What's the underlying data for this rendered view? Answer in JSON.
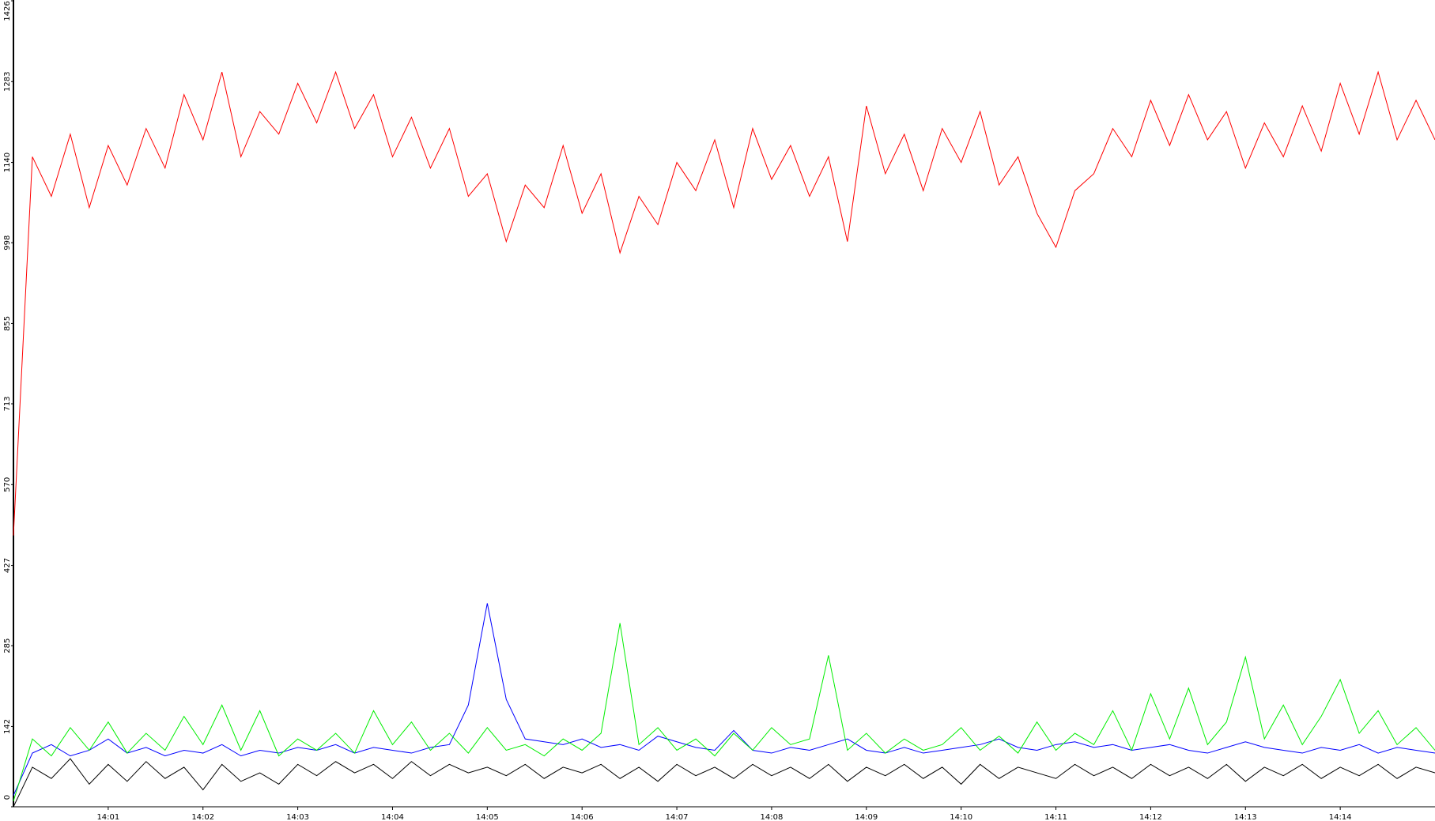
{
  "chart_data": {
    "type": "line",
    "x": [
      0,
      0.2,
      0.4,
      0.6,
      0.8,
      1,
      1.2,
      1.4,
      1.6,
      1.8,
      2,
      2.2,
      2.4,
      2.6,
      2.8,
      3,
      3.2,
      3.4,
      3.6,
      3.8,
      4,
      4.2,
      4.4,
      4.6,
      4.8,
      5,
      5.2,
      5.4,
      5.6,
      5.8,
      6,
      6.2,
      6.4,
      6.6,
      6.8,
      7,
      7.2,
      7.4,
      7.6,
      7.8,
      8,
      8.2,
      8.4,
      8.6,
      8.8,
      9,
      9.2,
      9.4,
      9.6,
      9.8,
      10,
      10.2,
      10.4,
      10.6,
      10.8,
      11,
      11.2,
      11.4,
      11.6,
      11.8,
      12,
      12.2,
      12.4,
      12.6,
      12.8,
      13,
      13.2,
      13.4,
      13.6,
      13.8,
      14,
      14.2,
      14.4,
      14.6,
      14.8,
      15
    ],
    "series": [
      {
        "color": "#ff0000",
        "values": [
          480,
          1150,
          1080,
          1190,
          1060,
          1170,
          1100,
          1200,
          1130,
          1260,
          1180,
          1300,
          1150,
          1230,
          1190,
          1280,
          1210,
          1300,
          1200,
          1260,
          1150,
          1220,
          1130,
          1200,
          1080,
          1120,
          1000,
          1100,
          1060,
          1170,
          1050,
          1120,
          980,
          1080,
          1030,
          1140,
          1090,
          1180,
          1060,
          1200,
          1110,
          1170,
          1080,
          1150,
          1000,
          1240,
          1120,
          1190,
          1090,
          1200,
          1140,
          1230,
          1100,
          1150,
          1050,
          990,
          1090,
          1120,
          1200,
          1150,
          1250,
          1170,
          1260,
          1180,
          1230,
          1130,
          1210,
          1150,
          1240,
          1160,
          1280,
          1190,
          1300,
          1180,
          1250,
          1180
        ]
      },
      {
        "color": "#0000ff",
        "values": [
          20,
          95,
          110,
          90,
          100,
          120,
          95,
          105,
          90,
          100,
          95,
          110,
          90,
          100,
          95,
          105,
          100,
          110,
          95,
          105,
          100,
          95,
          105,
          110,
          180,
          360,
          190,
          120,
          115,
          110,
          120,
          105,
          110,
          100,
          125,
          115,
          105,
          100,
          135,
          100,
          95,
          105,
          100,
          110,
          120,
          100,
          95,
          105,
          95,
          100,
          105,
          110,
          120,
          105,
          100,
          110,
          115,
          105,
          110,
          100,
          105,
          110,
          100,
          95,
          105,
          115,
          105,
          100,
          95,
          105,
          100,
          110,
          95,
          105,
          100,
          95
        ]
      },
      {
        "color": "#00ee00",
        "values": [
          10,
          120,
          90,
          140,
          100,
          150,
          95,
          130,
          100,
          160,
          110,
          180,
          100,
          170,
          90,
          120,
          100,
          130,
          95,
          170,
          110,
          150,
          100,
          130,
          95,
          140,
          100,
          110,
          90,
          120,
          100,
          130,
          325,
          110,
          140,
          100,
          120,
          90,
          130,
          100,
          140,
          110,
          120,
          268,
          100,
          130,
          95,
          120,
          100,
          110,
          140,
          100,
          125,
          95,
          150,
          100,
          130,
          110,
          170,
          100,
          200,
          120,
          210,
          110,
          150,
          265,
          120,
          180,
          110,
          160,
          225,
          130,
          170,
          110,
          140,
          100
        ]
      },
      {
        "color": "#000000",
        "values": [
          0,
          70,
          50,
          85,
          40,
          75,
          45,
          80,
          50,
          70,
          30,
          75,
          45,
          60,
          40,
          75,
          55,
          80,
          60,
          75,
          50,
          80,
          55,
          75,
          60,
          70,
          55,
          75,
          50,
          70,
          60,
          75,
          50,
          70,
          45,
          75,
          55,
          70,
          50,
          75,
          55,
          70,
          50,
          75,
          45,
          70,
          55,
          75,
          50,
          70,
          40,
          75,
          50,
          70,
          60,
          50,
          75,
          55,
          70,
          50,
          75,
          55,
          70,
          50,
          75,
          45,
          70,
          55,
          75,
          50,
          70,
          55,
          75,
          50,
          70,
          60
        ]
      }
    ],
    "xlim": [
      0,
      15
    ],
    "xticks": [
      {
        "value": 1,
        "label": "14:01"
      },
      {
        "value": 2,
        "label": "14:02"
      },
      {
        "value": 3,
        "label": "14:03"
      },
      {
        "value": 4,
        "label": "14:04"
      },
      {
        "value": 5,
        "label": "14:05"
      },
      {
        "value": 6,
        "label": "14:06"
      },
      {
        "value": 7,
        "label": "14:07"
      },
      {
        "value": 8,
        "label": "14:08"
      },
      {
        "value": 9,
        "label": "14:09"
      },
      {
        "value": 10,
        "label": "14:10"
      },
      {
        "value": 11,
        "label": "14:11"
      },
      {
        "value": 12,
        "label": "14:12"
      },
      {
        "value": 13,
        "label": "14:13"
      },
      {
        "value": 14,
        "label": "14:14"
      }
    ],
    "ylim": [
      0,
      1426
    ],
    "yticks": [
      0,
      142,
      285,
      427,
      570,
      713,
      855,
      998,
      1140,
      1283,
      1426
    ]
  }
}
